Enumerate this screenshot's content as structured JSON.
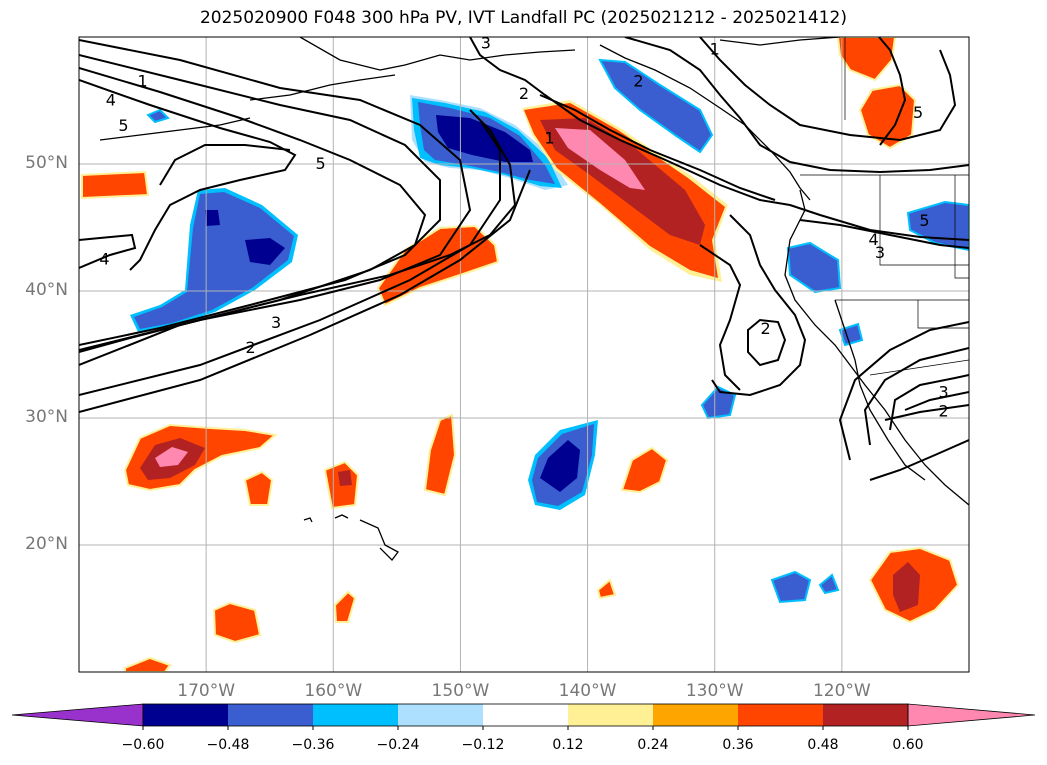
{
  "title": "2025020900 F048 300 hPa PV, IVT Landfall PC (2025021212 - 2025021412)",
  "map": {
    "projection": "equirectangular",
    "lon_range": [
      -180,
      -110
    ],
    "lat_range": [
      10,
      60
    ],
    "lat_ticks": [
      {
        "value": 50,
        "label": "50°N"
      },
      {
        "value": 40,
        "label": "40°N"
      },
      {
        "value": 30,
        "label": "30°N"
      },
      {
        "value": 20,
        "label": "20°N"
      }
    ],
    "lon_ticks": [
      {
        "value": -170,
        "label": "170°W"
      },
      {
        "value": -160,
        "label": "160°W"
      },
      {
        "value": -150,
        "label": "150°W"
      },
      {
        "value": -140,
        "label": "140°W"
      },
      {
        "value": -130,
        "label": "130°W"
      },
      {
        "value": -120,
        "label": "120°W"
      }
    ],
    "gridlines": true
  },
  "contour_labels": [
    {
      "text": "1",
      "lon": -175,
      "lat": 56.5
    },
    {
      "text": "4",
      "lon": -177.5,
      "lat": 55
    },
    {
      "text": "5",
      "lon": -176.5,
      "lat": 53
    },
    {
      "text": "5",
      "lon": -161,
      "lat": 50
    },
    {
      "text": "4",
      "lon": -178,
      "lat": 42.5
    },
    {
      "text": "3",
      "lon": -164.5,
      "lat": 37.5
    },
    {
      "text": "2",
      "lon": -166.5,
      "lat": 35.5
    },
    {
      "text": "3",
      "lon": -148,
      "lat": 59.5
    },
    {
      "text": "1",
      "lon": -130,
      "lat": 59
    },
    {
      "text": "2",
      "lon": -136,
      "lat": 56.5
    },
    {
      "text": "2",
      "lon": -145,
      "lat": 55.5
    },
    {
      "text": "1",
      "lon": -143,
      "lat": 52
    },
    {
      "text": "5",
      "lon": -114,
      "lat": 54
    },
    {
      "text": "5",
      "lon": -113.5,
      "lat": 45.5
    },
    {
      "text": "4",
      "lon": -117.5,
      "lat": 44
    },
    {
      "text": "3",
      "lon": -117,
      "lat": 43
    },
    {
      "text": "2",
      "lon": -126,
      "lat": 37
    },
    {
      "text": "3",
      "lon": -112,
      "lat": 32
    },
    {
      "text": "2",
      "lon": -112,
      "lat": 30.5
    }
  ],
  "colorbar": {
    "extend": "both",
    "boundaries": [
      -0.6,
      -0.48,
      -0.36,
      -0.24,
      -0.12,
      0.12,
      0.24,
      0.36,
      0.48,
      0.6
    ],
    "tick_labels": [
      "−0.60",
      "−0.48",
      "−0.36",
      "−0.24",
      "−0.12",
      "0.12",
      "0.24",
      "0.36",
      "0.48",
      "0.60"
    ],
    "colors": {
      "under": "#9932cc",
      "bins": [
        "#000090",
        "#3a5ecf",
        "#00bfff",
        "#ade0ff",
        "#ffffff",
        "#fff095",
        "#ffa500",
        "#ff4500",
        "#b22222"
      ],
      "over": "#ff88b0"
    }
  },
  "shaded_anomalies": [
    {
      "name": "gulf-of-alaska-negative",
      "sign": "negative",
      "peak": "#000090"
    },
    {
      "name": "pacific-northwest-positive",
      "sign": "positive",
      "peak": "#ff88b0"
    },
    {
      "name": "central-pacific-positive",
      "sign": "positive",
      "peak": "#ff4500"
    },
    {
      "name": "west-pacific-negative",
      "sign": "negative",
      "peak": "#000090"
    },
    {
      "name": "subtropical-negative",
      "sign": "negative",
      "peak": "#000090"
    },
    {
      "name": "dateline-positive",
      "sign": "positive",
      "peak": "#ff88b0"
    },
    {
      "name": "mexico-positive",
      "sign": "positive",
      "peak": "#b22222"
    }
  ]
}
